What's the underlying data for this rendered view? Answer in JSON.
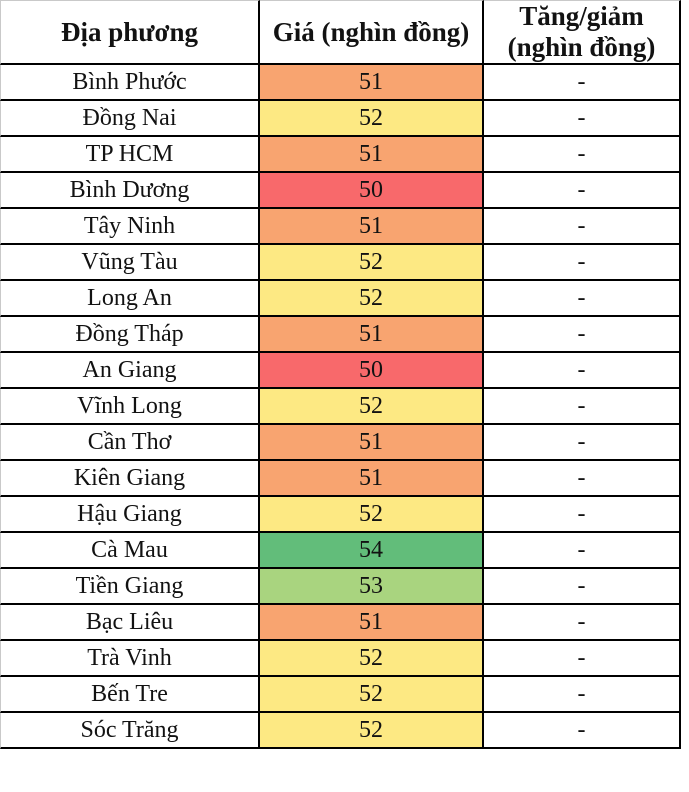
{
  "chart_data": {
    "type": "table",
    "columns": [
      "Địa phương",
      "Giá (nghìn đồng)",
      "Tăng/giảm (nghìn đồng)"
    ],
    "rows": [
      {
        "province": "Bình Phước",
        "price": 51,
        "change": "-"
      },
      {
        "province": "Đồng Nai",
        "price": 52,
        "change": "-"
      },
      {
        "province": "TP HCM",
        "price": 51,
        "change": "-"
      },
      {
        "province": "Bình Dương",
        "price": 50,
        "change": "-"
      },
      {
        "province": "Tây Ninh",
        "price": 51,
        "change": "-"
      },
      {
        "province": "Vũng Tàu",
        "price": 52,
        "change": "-"
      },
      {
        "province": "Long An",
        "price": 52,
        "change": "-"
      },
      {
        "province": "Đồng Tháp",
        "price": 51,
        "change": "-"
      },
      {
        "province": "An Giang",
        "price": 50,
        "change": "-"
      },
      {
        "province": "Vĩnh Long",
        "price": 52,
        "change": "-"
      },
      {
        "province": "Cần Thơ",
        "price": 51,
        "change": "-"
      },
      {
        "province": "Kiên Giang",
        "price": 51,
        "change": "-"
      },
      {
        "province": "Hậu Giang",
        "price": 52,
        "change": "-"
      },
      {
        "province": "Cà Mau",
        "price": 54,
        "change": "-"
      },
      {
        "province": "Tiền Giang",
        "price": 53,
        "change": "-"
      },
      {
        "province": "Bạc Liêu",
        "price": 51,
        "change": "-"
      },
      {
        "province": "Trà Vinh",
        "price": 52,
        "change": "-"
      },
      {
        "province": "Bến Tre",
        "price": 52,
        "change": "-"
      },
      {
        "province": "Sóc Trăng",
        "price": 52,
        "change": "-"
      }
    ],
    "price_color_scale": {
      "50": "#F8696B",
      "51": "#F8A470",
      "52": "#FDE983",
      "53": "#A9D47F",
      "54": "#62BD7A"
    },
    "grid_color": "#000000",
    "outer_edge_color": "#c9c9c9"
  }
}
